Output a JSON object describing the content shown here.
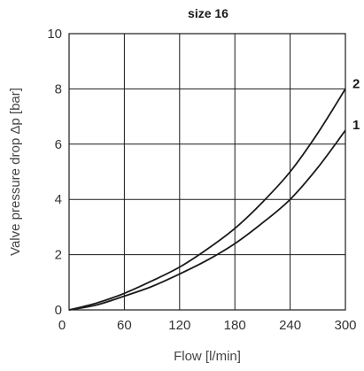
{
  "chart_data": {
    "type": "line",
    "title": "size 16",
    "xlabel": "Flow [l/min]",
    "ylabel": "Valve pressure drop Δp [bar]",
    "xlim": [
      0,
      300
    ],
    "ylim": [
      0,
      10
    ],
    "xticks": [
      0,
      60,
      120,
      180,
      240,
      300
    ],
    "yticks": [
      0,
      2,
      4,
      6,
      8,
      10
    ],
    "grid": true,
    "series": [
      {
        "name": "1",
        "x": [
          0,
          30,
          60,
          90,
          120,
          150,
          180,
          210,
          240,
          270,
          300
        ],
        "y": [
          0,
          0.18,
          0.5,
          0.85,
          1.3,
          1.8,
          2.4,
          3.15,
          4.0,
          5.15,
          6.5
        ]
      },
      {
        "name": "2",
        "x": [
          0,
          30,
          60,
          90,
          120,
          150,
          180,
          210,
          240,
          270,
          300
        ],
        "y": [
          0,
          0.25,
          0.6,
          1.05,
          1.55,
          2.2,
          2.95,
          3.9,
          5.0,
          6.4,
          8.0
        ]
      }
    ]
  }
}
